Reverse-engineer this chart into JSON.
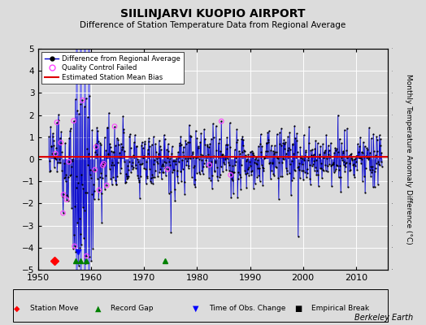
{
  "title": "SIILINJARVI KUOPIO AIRPORT",
  "subtitle": "Difference of Station Temperature Data from Regional Average",
  "ylabel": "Monthly Temperature Anomaly Difference (°C)",
  "xlim": [
    1950,
    2016
  ],
  "ylim": [
    -5,
    5
  ],
  "yticks": [
    -5,
    -4,
    -3,
    -2,
    -1,
    0,
    1,
    2,
    3,
    4,
    5
  ],
  "xticks": [
    1950,
    1960,
    1970,
    1980,
    1990,
    2000,
    2010
  ],
  "mean_bias": 0.1,
  "bias_color": "#dd0000",
  "line_color": "#0000cc",
  "dot_color": "#000000",
  "qc_color": "#ff44ff",
  "background_color": "#dcdcdc",
  "grid_color": "#ffffff",
  "berkeley_earth_text": "Berkeley Earth",
  "start_year": 1952.0,
  "end_year": 2015.0
}
